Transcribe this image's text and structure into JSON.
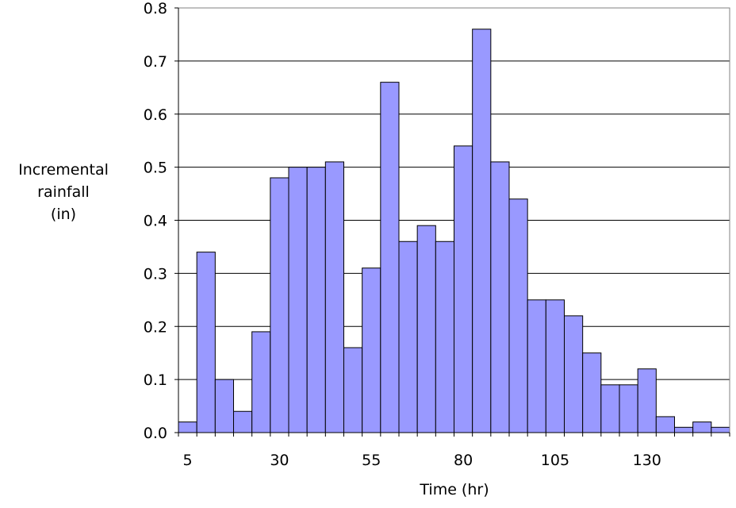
{
  "chart_data": {
    "type": "bar",
    "title": "",
    "xlabel": "Time (hr)",
    "ylabel_lines": [
      "Incremental",
      "rainfall",
      "(in)"
    ],
    "x": [
      5,
      10,
      15,
      20,
      25,
      30,
      35,
      40,
      45,
      50,
      55,
      60,
      65,
      70,
      75,
      80,
      85,
      90,
      95,
      100,
      105,
      110,
      115,
      120,
      125,
      130,
      135,
      140,
      145,
      150
    ],
    "values": [
      0.02,
      0.34,
      0.1,
      0.04,
      0.19,
      0.48,
      0.5,
      0.5,
      0.51,
      0.16,
      0.31,
      0.66,
      0.36,
      0.39,
      0.36,
      0.54,
      0.76,
      0.51,
      0.44,
      0.25,
      0.25,
      0.22,
      0.15,
      0.09,
      0.09,
      0.12,
      0.03,
      0.01,
      0.02,
      0.01
    ],
    "xticks": [
      "5",
      "30",
      "55",
      "80",
      "105",
      "130"
    ],
    "yticks": [
      "0.0",
      "0.1",
      "0.2",
      "0.3",
      "0.4",
      "0.5",
      "0.6",
      "0.7",
      "0.8"
    ],
    "ylim": [
      0,
      0.8
    ],
    "grid": true,
    "bar_color": "#9999ff",
    "bar_edge_color": "#000000"
  }
}
